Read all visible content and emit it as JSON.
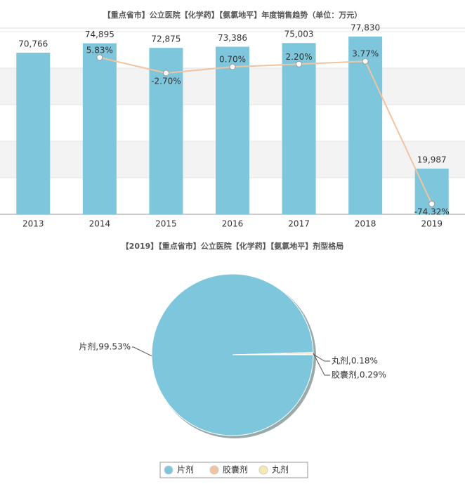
{
  "chart_data": [
    {
      "type": "bar",
      "title": "【重点省市】公立医院【化学药】【氨氯地平】年度销售趋势（单位：万元）",
      "categories": [
        "2013",
        "2014",
        "2015",
        "2016",
        "2017",
        "2018",
        "2019"
      ],
      "series": [
        {
          "type": "bar",
          "color": "#7ec6dc",
          "values": [
            70766,
            74895,
            72875,
            73386,
            75003,
            77830,
            19987
          ],
          "value_labels": [
            "70,766",
            "74,895",
            "72,875",
            "73,386",
            "75,003",
            "77,830",
            "19,987"
          ]
        },
        {
          "type": "line",
          "axis": "y2",
          "color": "#f2c3a0",
          "values": [
            null,
            5.83,
            -2.7,
            0.7,
            2.2,
            3.77,
            -74.32
          ],
          "value_labels": [
            null,
            "5.83%",
            "-2.70%",
            "0.70%",
            "2.20%",
            "3.77%",
            "-74.32%"
          ]
        }
      ],
      "ylim": [
        0,
        80000
      ],
      "y2lim": [
        -80,
        20
      ],
      "grid": true
    },
    {
      "type": "pie",
      "title": "【2019】【重点省市】公立医院【化学药】【氨氯地平】剂型格局",
      "categories": [
        "片剂",
        "胶囊剂",
        "丸剂"
      ],
      "values": [
        99.53,
        0.29,
        0.18
      ],
      "value_labels": [
        "片剂,99.53%",
        "胶囊剂,0.29%",
        "丸剂,0.18%"
      ],
      "colors": [
        "#7ec6dc",
        "#f2c3a0",
        "#f5e8b0"
      ],
      "legend": "bottom"
    }
  ]
}
